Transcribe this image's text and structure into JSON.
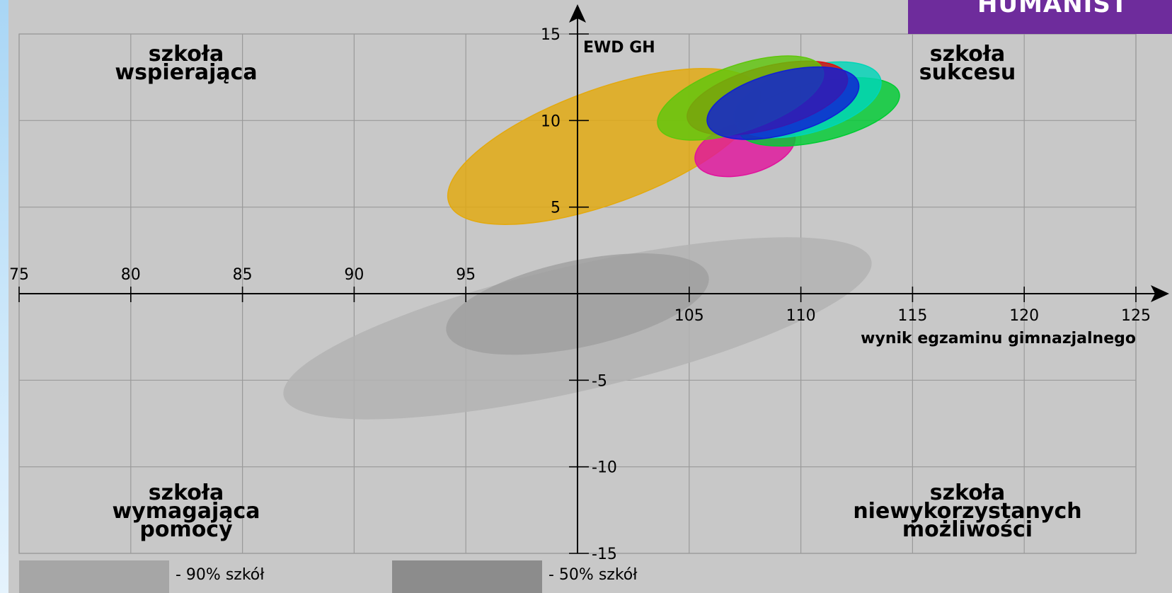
{
  "badge": {
    "text": "HUMANIST"
  },
  "chart_data": {
    "type": "scatter",
    "x_axis": {
      "label": "wynik egzaminu gimnazjalnego",
      "range": [
        75,
        125
      ],
      "ticks": [
        75,
        80,
        85,
        90,
        95,
        105,
        110,
        115,
        120,
        125
      ],
      "tick_labels": [
        "75",
        "80",
        "85",
        "90",
        "95",
        "105",
        "110",
        "115",
        "120",
        "125"
      ]
    },
    "y_axis": {
      "label": "EWD GH",
      "range": [
        -15,
        15
      ],
      "ticks": [
        15,
        10,
        5,
        -5,
        -10,
        -15
      ],
      "tick_labels": [
        "15",
        "10",
        "5",
        "-5",
        "-10",
        "-15"
      ]
    },
    "grid": true,
    "quadrant_labels": {
      "top_left": [
        "szkoła",
        "wspierająca"
      ],
      "top_right": [
        "szkoła",
        "sukcesu"
      ],
      "bottom_left": [
        "szkoła",
        "wymagająca",
        "pomocy"
      ],
      "bottom_right": [
        "szkoła",
        "niewykorzystanych",
        "możliwości"
      ]
    },
    "legend": [
      {
        "label": "- 90% szkół",
        "color": "#a6a6a6"
      },
      {
        "label": "- 50% szkół",
        "color": "#8c8c8c"
      }
    ],
    "reference_regions": [
      {
        "level": "90%",
        "cx": 100,
        "cy": -2,
        "rx": 13.5,
        "ry": 3.6,
        "angle": 13,
        "color": "#b3b3b3",
        "opacity": 0.85
      },
      {
        "level": "50%",
        "cx": 100,
        "cy": -0.6,
        "rx": 6,
        "ry": 2.5,
        "angle": 12,
        "color": "#9c9c9c",
        "opacity": 0.75
      }
    ],
    "series": [
      {
        "cx": 101.2,
        "cy": 8.5,
        "rx": 7.4,
        "ry": 3.3,
        "angle": 20,
        "color": "#e3a90d"
      },
      {
        "cx": 107.5,
        "cy": 8.4,
        "rx": 2.3,
        "ry": 1.5,
        "angle": 15,
        "color": "#e0139c"
      },
      {
        "cx": 110.8,
        "cy": 10.5,
        "rx": 3.7,
        "ry": 1.7,
        "angle": 13,
        "color": "#00cc33"
      },
      {
        "cx": 110.3,
        "cy": 11.2,
        "rx": 3.4,
        "ry": 1.9,
        "angle": 16,
        "color": "#00d6b8"
      },
      {
        "cx": 108.5,
        "cy": 11.3,
        "rx": 3.7,
        "ry": 1.8,
        "angle": 15,
        "color": "#e00b0b"
      },
      {
        "cx": 107.3,
        "cy": 11.3,
        "rx": 3.9,
        "ry": 1.9,
        "angle": 19,
        "color": "#5fc60c"
      },
      {
        "cx": 109.2,
        "cy": 11.0,
        "rx": 3.5,
        "ry": 1.8,
        "angle": 15,
        "color": "#0f1fd6"
      }
    ]
  }
}
